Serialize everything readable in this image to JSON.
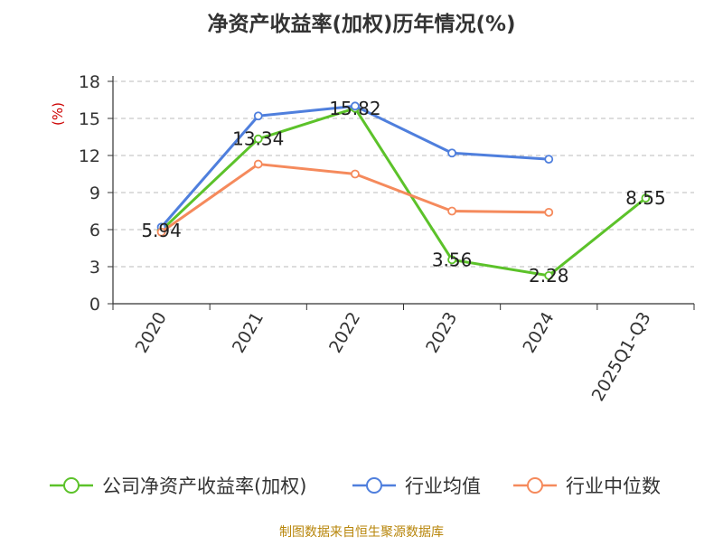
{
  "chart_data": {
    "type": "line",
    "title": "净资产收益率(加权)历年情况(%)",
    "ylabel": "(%)",
    "xlabel": "",
    "categories": [
      "2020",
      "2021",
      "2022",
      "2023",
      "2024",
      "2025Q1-Q3"
    ],
    "ylim": [
      0,
      18
    ],
    "yticks": [
      0,
      3,
      6,
      9,
      12,
      15,
      18
    ],
    "grid": true,
    "legend_position": "bottom",
    "series": [
      {
        "name": "公司净资产收益率(加权)",
        "color": "#5cc22a",
        "values": [
          5.94,
          13.34,
          15.82,
          3.56,
          2.28,
          8.55
        ],
        "labels": [
          "5.94",
          "13.34",
          "15.82",
          "3.56",
          "2.28",
          "8.55"
        ]
      },
      {
        "name": "行业均值",
        "color": "#4f7fdd",
        "values": [
          6.2,
          15.2,
          16.0,
          12.2,
          11.7,
          null
        ]
      },
      {
        "name": "行业中位数",
        "color": "#f58a5c",
        "values": [
          5.8,
          11.3,
          10.5,
          7.5,
          7.4,
          null
        ]
      }
    ],
    "source": "制图数据来自恒生聚源数据库",
    "colors": {
      "ylabel": "#cc0000",
      "source": "#b8860b",
      "axis": "#333333",
      "grid": "#bbbbbb"
    }
  }
}
